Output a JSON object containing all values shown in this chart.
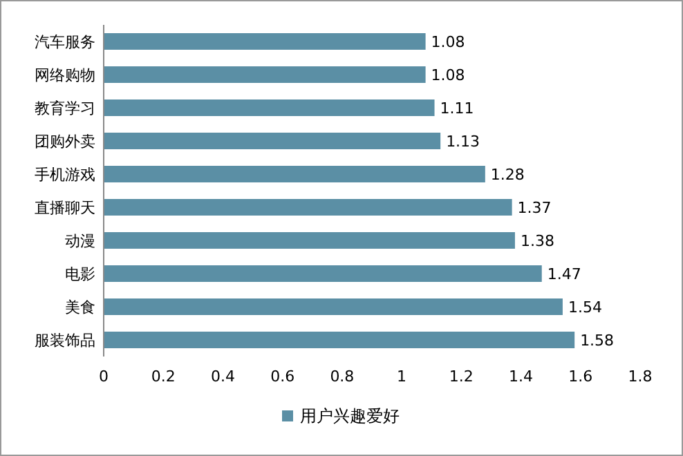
{
  "chart_data": {
    "type": "bar",
    "orientation": "horizontal",
    "categories": [
      "汽车服务",
      "网络购物",
      "教育学习",
      "团购外卖",
      "手机游戏",
      "直播聊天",
      "动漫",
      "电影",
      "美食",
      "服装饰品"
    ],
    "series": [
      {
        "name": "用户兴趣爱好",
        "color": "#5b8fa5",
        "values": [
          1.08,
          1.08,
          1.11,
          1.13,
          1.28,
          1.37,
          1.38,
          1.47,
          1.54,
          1.58
        ]
      }
    ],
    "xlim": [
      0,
      1.8
    ],
    "xticks": [
      0,
      0.2,
      0.4,
      0.6,
      0.8,
      1,
      1.2,
      1.4,
      1.6,
      1.8
    ],
    "data_labels": true,
    "legend": "bottom"
  }
}
